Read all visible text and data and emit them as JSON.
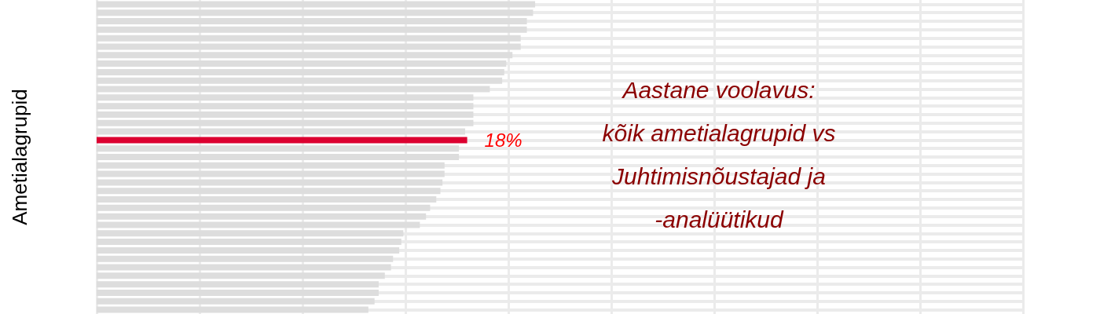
{
  "chart_data": {
    "type": "bar",
    "orientation": "horizontal",
    "title": "Aastane voolavus:\nkõik ametialagrupid vs\nJuhtimisnõustajad ja\n-analüütikud",
    "ylabel": "Ametialagrupid",
    "categories": [
      null,
      null,
      null,
      null,
      null,
      null,
      null,
      null,
      null,
      null,
      null,
      null,
      null,
      null,
      null,
      null,
      null,
      null,
      null,
      null,
      null,
      null,
      null,
      null,
      null,
      null,
      null,
      null,
      null,
      null,
      null,
      null,
      null,
      null,
      null,
      null,
      null
    ],
    "values": [
      21.3,
      21.2,
      20.9,
      20.9,
      20.6,
      20.6,
      20.2,
      19.9,
      19.8,
      19.7,
      19.1,
      18.3,
      18.3,
      18.3,
      18.3,
      17.9,
      18,
      17.6,
      17.6,
      16.9,
      16.9,
      16.8,
      16.7,
      16.5,
      16.2,
      16.0,
      15.7,
      14.9,
      14.8,
      14.7,
      14.4,
      14.3,
      14.0,
      13.7,
      13.7,
      13.5,
      13.2
    ],
    "colors": [
      "#dddddd",
      "#dddddd",
      "#dddddd",
      "#dddddd",
      "#dddddd",
      "#dddddd",
      "#dddddd",
      "#dddddd",
      "#dddddd",
      "#dddddd",
      "#dddddd",
      "#dddddd",
      "#dddddd",
      "#dddddd",
      "#dddddd",
      "#dddddd",
      "#dc0030",
      "#dddddd",
      "#dddddd",
      "#dddddd",
      "#dddddd",
      "#dddddd",
      "#dddddd",
      "#dddddd",
      "#dddddd",
      "#dddddd",
      "#dddddd",
      "#dddddd",
      "#dddddd",
      "#dddddd",
      "#dddddd",
      "#dddddd",
      "#dddddd",
      "#dddddd",
      "#dddddd",
      "#dddddd",
      "#dddddd"
    ],
    "value_labels": [
      null,
      null,
      null,
      null,
      null,
      null,
      null,
      null,
      null,
      null,
      null,
      null,
      null,
      null,
      null,
      null,
      "18%",
      null,
      null,
      null,
      null,
      null,
      null,
      null,
      null,
      null,
      null,
      null,
      null,
      null,
      null,
      null,
      null,
      null,
      null,
      null,
      null
    ],
    "xticks": [
      {
        "value": 0,
        "label": null
      },
      {
        "value": 5,
        "label": null
      },
      {
        "value": 10,
        "label": null
      },
      {
        "value": 15,
        "label": null
      },
      {
        "value": 20,
        "label": null
      },
      {
        "value": 25,
        "label": null
      },
      {
        "value": 30,
        "label": null
      },
      {
        "value": 35,
        "label": null
      },
      {
        "value": 40,
        "label": null
      },
      {
        "value": 45,
        "label": null
      }
    ],
    "tick_labels": false,
    "grid": true
  }
}
